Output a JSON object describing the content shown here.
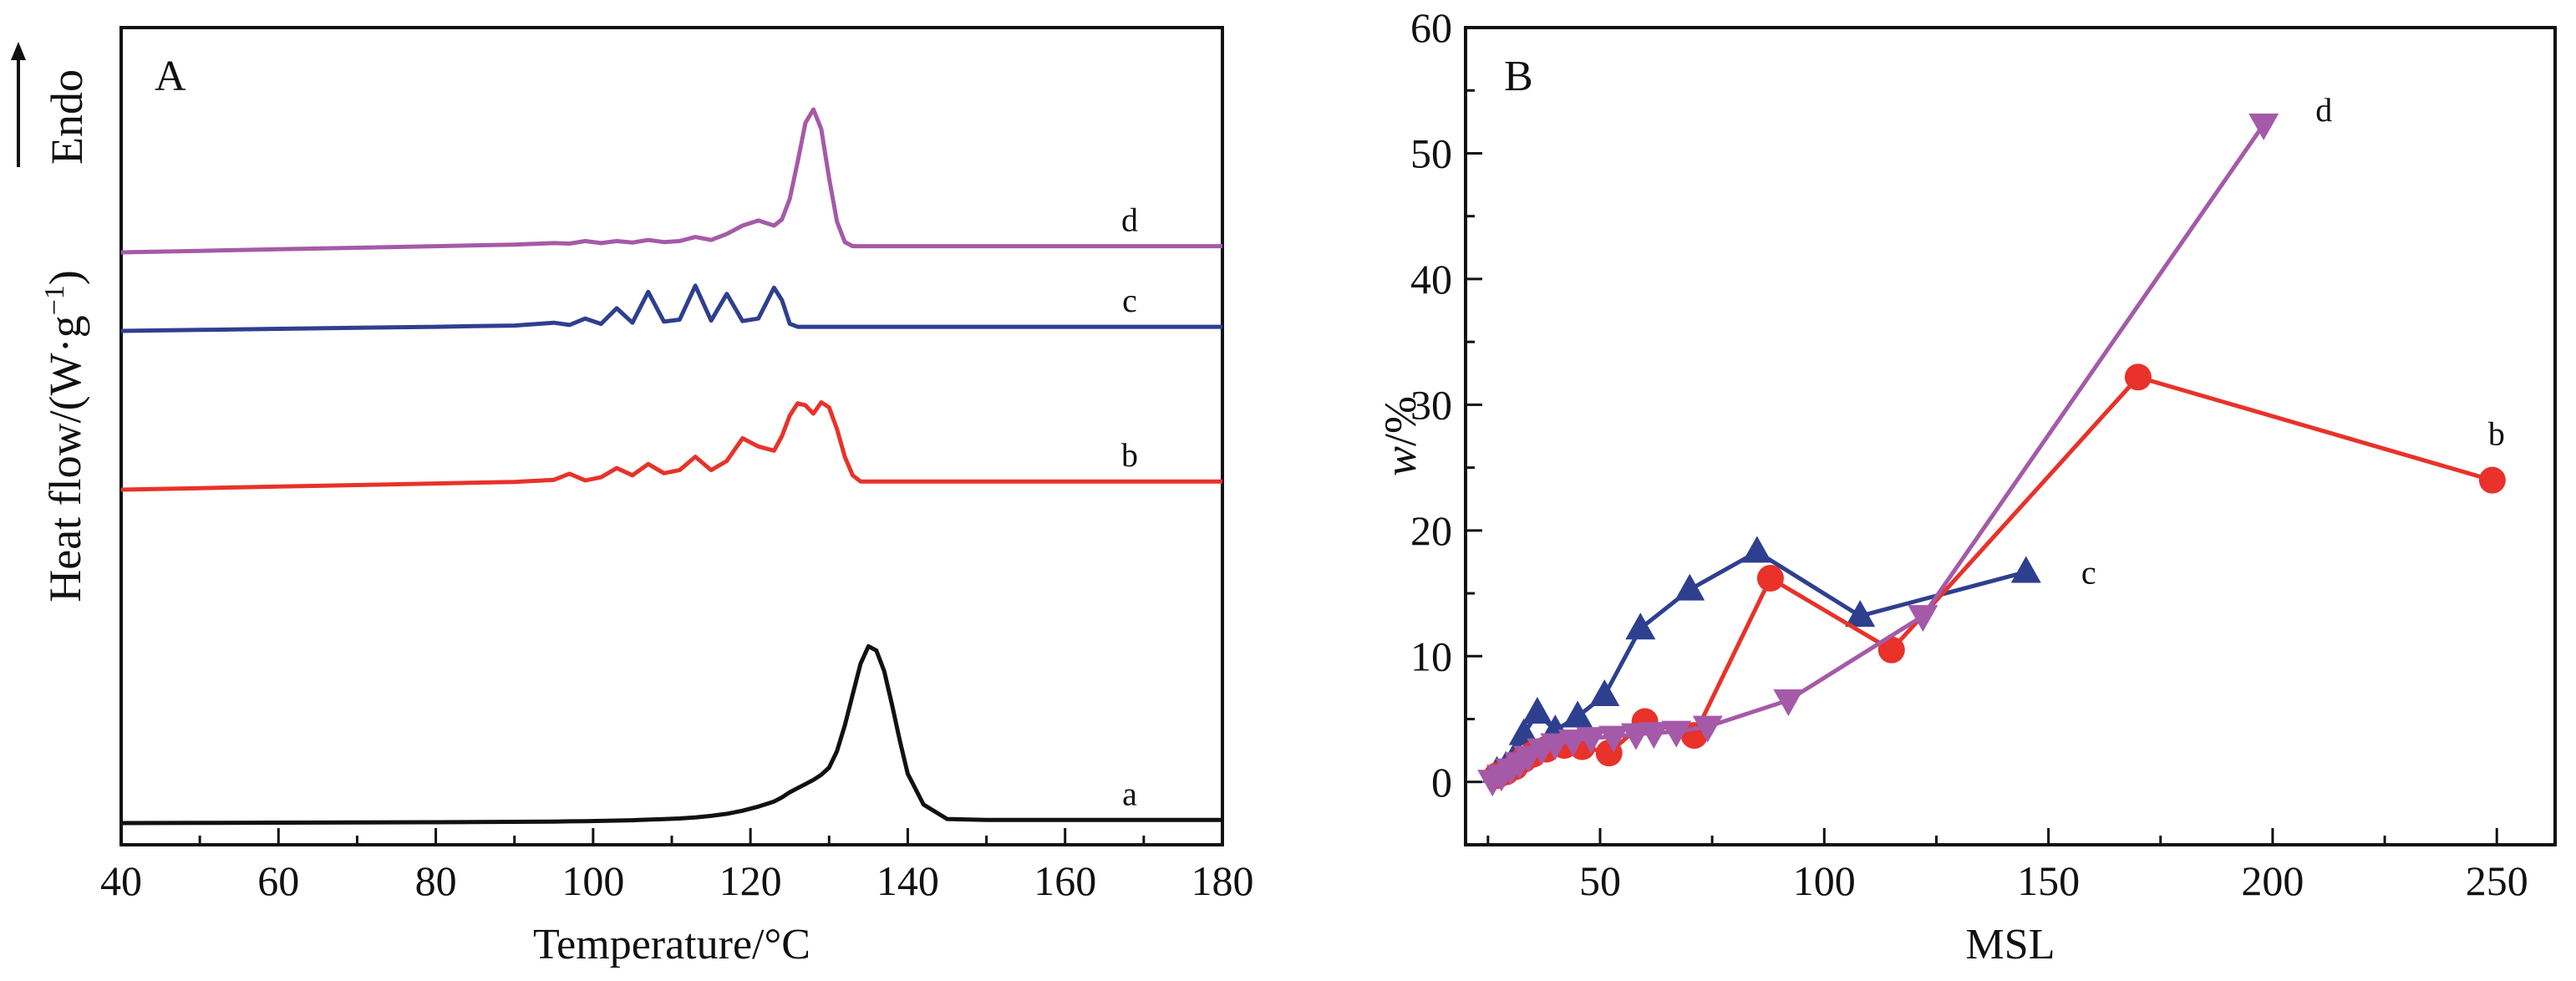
{
  "colors": {
    "a": "#111111",
    "b": "#e8322a",
    "c": "#2f3f8f",
    "d": "#a45aa8"
  },
  "chart_data": [
    {
      "panel": "A",
      "type": "line",
      "xlabel": "Temperature/°C",
      "ylabel": "Heat flow/(W·g⁻¹)",
      "ylabel_main": "Heat flow/(W·g",
      "ylabel_sup": "−1",
      "ylabel_close": ")",
      "endo_label": "Endo",
      "xlim": [
        40,
        180
      ],
      "xticks": [
        40,
        60,
        80,
        100,
        120,
        140,
        160,
        180
      ],
      "x": [
        40,
        50,
        60,
        70,
        80,
        85,
        90,
        95,
        97,
        99,
        101,
        103,
        105,
        107,
        109,
        111,
        113,
        115,
        117,
        119,
        121,
        123,
        124,
        125,
        126,
        127,
        128,
        129,
        130,
        131,
        132,
        133,
        134,
        135,
        136,
        137,
        138,
        139,
        140,
        142,
        145,
        150,
        160,
        170,
        180
      ],
      "series": [
        {
          "name": "a",
          "values": [
            0.0,
            0.02,
            0.04,
            0.06,
            0.08,
            0.1,
            0.12,
            0.15,
            0.17,
            0.19,
            0.21,
            0.24,
            0.28,
            0.33,
            0.38,
            0.45,
            0.55,
            0.7,
            0.9,
            1.2,
            1.6,
            2.1,
            2.5,
            3.0,
            3.4,
            3.8,
            4.2,
            4.7,
            5.4,
            7.0,
            9.5,
            12.5,
            15.5,
            17.2,
            16.8,
            14.8,
            11.5,
            8.0,
            4.8,
            1.8,
            0.4,
            0.3,
            0.3,
            0.3,
            0.3
          ]
        },
        {
          "name": "b",
          "values": [
            0.0,
            0.15,
            0.3,
            0.45,
            0.6,
            0.68,
            0.76,
            0.95,
            1.55,
            0.9,
            1.2,
            2.1,
            1.4,
            2.5,
            1.6,
            1.9,
            3.2,
            1.9,
            2.8,
            5.0,
            4.2,
            3.8,
            5.2,
            7.2,
            8.4,
            8.2,
            7.4,
            8.5,
            8.0,
            5.9,
            3.2,
            1.4,
            0.8,
            0.8,
            0.8,
            0.8,
            0.8,
            0.8,
            0.8,
            0.8,
            0.8,
            0.8,
            0.8,
            0.8,
            0.8
          ]
        },
        {
          "name": "c",
          "values": [
            0.0,
            0.1,
            0.2,
            0.3,
            0.4,
            0.46,
            0.52,
            0.8,
            0.58,
            1.2,
            0.68,
            2.2,
            0.8,
            3.8,
            0.9,
            1.1,
            4.4,
            1.0,
            3.6,
            0.96,
            1.2,
            4.2,
            3.0,
            0.7,
            0.4,
            0.4,
            0.4,
            0.4,
            0.4,
            0.4,
            0.4,
            0.4,
            0.4,
            0.4,
            0.4,
            0.4,
            0.4,
            0.4,
            0.4,
            0.4,
            0.4,
            0.4,
            0.4,
            0.4,
            0.4
          ]
        },
        {
          "name": "d",
          "values": [
            0.0,
            0.15,
            0.3,
            0.45,
            0.6,
            0.68,
            0.76,
            0.9,
            0.85,
            1.1,
            0.9,
            1.1,
            0.95,
            1.2,
            1.0,
            1.1,
            1.5,
            1.2,
            1.8,
            2.6,
            3.1,
            2.6,
            3.2,
            5.2,
            8.8,
            12.6,
            13.9,
            12.0,
            7.2,
            3.0,
            1.0,
            0.6,
            0.6,
            0.6,
            0.6,
            0.6,
            0.6,
            0.6,
            0.6,
            0.6,
            0.6,
            0.6,
            0.6,
            0.6,
            0.6
          ]
        }
      ]
    },
    {
      "panel": "B",
      "type": "line",
      "xlabel": "MSL",
      "ylabel": "w/%",
      "ylabel_italic": "w",
      "ylabel_rest": "/%",
      "xlim": [
        20,
        263
      ],
      "ylim": [
        -5,
        60
      ],
      "xticks": [
        50,
        100,
        150,
        200,
        250
      ],
      "yticks": [
        0,
        10,
        20,
        30,
        40,
        50,
        60
      ],
      "series": [
        {
          "name": "b",
          "marker": "circle",
          "points": [
            [
              27,
              0.5
            ],
            [
              29,
              0.8
            ],
            [
              31,
              1.2
            ],
            [
              33,
              1.8
            ],
            [
              35,
              2.2
            ],
            [
              38,
              2.6
            ],
            [
              42,
              2.9
            ],
            [
              46,
              2.8
            ],
            [
              52,
              2.3
            ],
            [
              60,
              4.8
            ],
            [
              71,
              3.7
            ],
            [
              88,
              16.2
            ],
            [
              115,
              10.5
            ],
            [
              170,
              32.2
            ],
            [
              249,
              24.0
            ]
          ]
        },
        {
          "name": "c",
          "marker": "triangle-up",
          "points": [
            [
              27,
              0.8
            ],
            [
              29,
              1.2
            ],
            [
              31,
              2.0
            ],
            [
              33,
              3.8
            ],
            [
              36,
              5.5
            ],
            [
              40,
              4.1
            ],
            [
              45,
              5.2
            ],
            [
              51,
              6.9
            ],
            [
              59,
              12.2
            ],
            [
              70,
              15.3
            ],
            [
              85,
              18.3
            ],
            [
              108,
              13.2
            ],
            [
              145,
              16.7
            ]
          ]
        },
        {
          "name": "d",
          "marker": "triangle-down",
          "points": [
            [
              26,
              0.1
            ],
            [
              28,
              0.5
            ],
            [
              30,
              1.0
            ],
            [
              32,
              1.5
            ],
            [
              34,
              2.0
            ],
            [
              37,
              2.6
            ],
            [
              40,
              3.0
            ],
            [
              44,
              3.3
            ],
            [
              48,
              3.5
            ],
            [
              53,
              3.6
            ],
            [
              58,
              3.8
            ],
            [
              62,
              3.9
            ],
            [
              67,
              4.0
            ],
            [
              74,
              4.4
            ],
            [
              92,
              6.5
            ],
            [
              122,
              13.2
            ],
            [
              198,
              52.3
            ]
          ]
        }
      ]
    }
  ]
}
